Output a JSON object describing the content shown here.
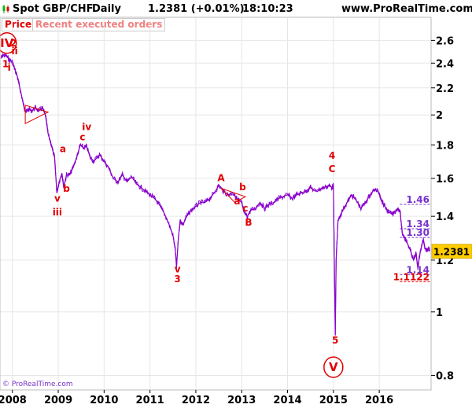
{
  "header": {
    "instrument": "Spot GBP/CHF",
    "period": "Daily",
    "last_price": "1.2381 (+0.01%)",
    "time": "18:10:23",
    "site": "www.ProRealTime.com"
  },
  "legend": {
    "price_label": "Price",
    "orders_label": "Recent executed orders"
  },
  "footer": {
    "copyright": "© ProRealTime.com"
  },
  "colors": {
    "price_line": "#8800cc",
    "wave_label": "#e00000",
    "level_label": "#7733cc",
    "price_badge": "#ffcc00",
    "grid": "#e6e6e6"
  },
  "chart_data": {
    "type": "line",
    "scale": "log",
    "x_tick_labels": [
      "2008",
      "2009",
      "2010",
      "2011",
      "2012",
      "2013",
      "2014",
      "2015",
      "2016"
    ],
    "y_tick_labels": [
      "0.8",
      "1",
      "1.2",
      "1.4",
      "1.6",
      "1.8",
      "2",
      "2.2",
      "2.4",
      "2.6"
    ],
    "y_ticks": [
      0.8,
      1.0,
      1.2,
      1.4,
      1.6,
      1.8,
      2.0,
      2.2,
      2.4,
      2.6
    ],
    "xlim": [
      2007.73,
      2017.13
    ],
    "ylim": [
      0.76,
      2.82
    ],
    "current_price": 1.2381,
    "current_price_label": "1.2381",
    "series": [
      {
        "points": [
          [
            2007.75,
            2.44
          ],
          [
            2007.8,
            2.47
          ],
          [
            2007.87,
            2.46
          ],
          [
            2007.93,
            2.43
          ],
          [
            2008.0,
            2.41
          ],
          [
            2008.05,
            2.35
          ],
          [
            2008.1,
            2.3
          ],
          [
            2008.15,
            2.22
          ],
          [
            2008.2,
            2.14
          ],
          [
            2008.25,
            2.06
          ],
          [
            2008.3,
            2.02
          ],
          [
            2008.35,
            2.04
          ],
          [
            2008.42,
            2.03
          ],
          [
            2008.5,
            2.05
          ],
          [
            2008.58,
            2.03
          ],
          [
            2008.65,
            2.05
          ],
          [
            2008.72,
            2.0
          ],
          [
            2008.78,
            1.87
          ],
          [
            2008.85,
            1.8
          ],
          [
            2008.92,
            1.72
          ],
          [
            2008.97,
            1.52
          ],
          [
            2009.02,
            1.58
          ],
          [
            2009.08,
            1.63
          ],
          [
            2009.12,
            1.55
          ],
          [
            2009.18,
            1.62
          ],
          [
            2009.25,
            1.62
          ],
          [
            2009.32,
            1.66
          ],
          [
            2009.4,
            1.72
          ],
          [
            2009.48,
            1.8
          ],
          [
            2009.55,
            1.78
          ],
          [
            2009.62,
            1.79
          ],
          [
            2009.7,
            1.72
          ],
          [
            2009.78,
            1.7
          ],
          [
            2009.9,
            1.74
          ],
          [
            2010.0,
            1.7
          ],
          [
            2010.1,
            1.66
          ],
          [
            2010.2,
            1.6
          ],
          [
            2010.3,
            1.58
          ],
          [
            2010.4,
            1.62
          ],
          [
            2010.5,
            1.58
          ],
          [
            2010.6,
            1.61
          ],
          [
            2010.7,
            1.57
          ],
          [
            2010.8,
            1.55
          ],
          [
            2010.9,
            1.53
          ],
          [
            2011.0,
            1.51
          ],
          [
            2011.1,
            1.49
          ],
          [
            2011.2,
            1.46
          ],
          [
            2011.3,
            1.42
          ],
          [
            2011.4,
            1.37
          ],
          [
            2011.5,
            1.31
          ],
          [
            2011.55,
            1.25
          ],
          [
            2011.58,
            1.17
          ],
          [
            2011.62,
            1.3
          ],
          [
            2011.66,
            1.38
          ],
          [
            2011.72,
            1.36
          ],
          [
            2011.8,
            1.4
          ],
          [
            2011.9,
            1.43
          ],
          [
            2012.0,
            1.45
          ],
          [
            2012.1,
            1.47
          ],
          [
            2012.2,
            1.47
          ],
          [
            2012.3,
            1.49
          ],
          [
            2012.4,
            1.52
          ],
          [
            2012.5,
            1.56
          ],
          [
            2012.6,
            1.53
          ],
          [
            2012.7,
            1.51
          ],
          [
            2012.8,
            1.52
          ],
          [
            2012.9,
            1.49
          ],
          [
            2013.0,
            1.47
          ],
          [
            2013.05,
            1.42
          ],
          [
            2013.12,
            1.4
          ],
          [
            2013.2,
            1.43
          ],
          [
            2013.3,
            1.44
          ],
          [
            2013.4,
            1.47
          ],
          [
            2013.5,
            1.44
          ],
          [
            2013.6,
            1.46
          ],
          [
            2013.7,
            1.47
          ],
          [
            2013.8,
            1.49
          ],
          [
            2013.9,
            1.5
          ],
          [
            2014.0,
            1.51
          ],
          [
            2014.1,
            1.49
          ],
          [
            2014.2,
            1.51
          ],
          [
            2014.3,
            1.52
          ],
          [
            2014.4,
            1.53
          ],
          [
            2014.5,
            1.55
          ],
          [
            2014.6,
            1.53
          ],
          [
            2014.7,
            1.54
          ],
          [
            2014.8,
            1.55
          ],
          [
            2014.9,
            1.56
          ],
          [
            2014.97,
            1.55
          ],
          [
            2015.0,
            1.56
          ],
          [
            2015.02,
            1.2
          ],
          [
            2015.04,
            0.92
          ],
          [
            2015.06,
            1.2
          ],
          [
            2015.1,
            1.38
          ],
          [
            2015.2,
            1.43
          ],
          [
            2015.3,
            1.47
          ],
          [
            2015.4,
            1.51
          ],
          [
            2015.5,
            1.48
          ],
          [
            2015.6,
            1.44
          ],
          [
            2015.7,
            1.47
          ],
          [
            2015.8,
            1.51
          ],
          [
            2015.9,
            1.54
          ],
          [
            2016.0,
            1.52
          ],
          [
            2016.05,
            1.48
          ],
          [
            2016.12,
            1.45
          ],
          [
            2016.2,
            1.42
          ],
          [
            2016.3,
            1.41
          ],
          [
            2016.4,
            1.44
          ],
          [
            2016.45,
            1.43
          ],
          [
            2016.5,
            1.32
          ],
          [
            2016.55,
            1.3
          ],
          [
            2016.6,
            1.28
          ],
          [
            2016.68,
            1.24
          ],
          [
            2016.75,
            1.2
          ],
          [
            2016.8,
            1.23
          ],
          [
            2016.84,
            1.17
          ],
          [
            2016.88,
            1.22
          ],
          [
            2016.92,
            1.26
          ],
          [
            2016.96,
            1.29
          ],
          [
            2017.0,
            1.25
          ],
          [
            2017.04,
            1.24
          ],
          [
            2017.08,
            1.25
          ],
          [
            2017.1,
            1.2381
          ]
        ]
      }
    ],
    "wave_labels": [
      {
        "text": "IV",
        "x": 2007.88,
        "y": 2.54,
        "circled": true
      },
      {
        "text": "2",
        "x": 2008.03,
        "y": 2.545
      },
      {
        "text": "ii",
        "x": 2008.05,
        "y": 2.475
      },
      {
        "text": "1",
        "x": 2007.85,
        "y": 2.365
      },
      {
        "text": "i",
        "x": 2007.93,
        "y": 2.335
      },
      {
        "text": "a",
        "x": 2009.1,
        "y": 1.755
      },
      {
        "text": "iv",
        "x": 2009.62,
        "y": 1.895
      },
      {
        "text": "c",
        "x": 2009.53,
        "y": 1.83
      },
      {
        "text": "b",
        "x": 2009.18,
        "y": 1.525
      },
      {
        "text": "v",
        "x": 2008.98,
        "y": 1.475
      },
      {
        "text": "iii",
        "x": 2008.98,
        "y": 1.405
      },
      {
        "text": "A",
        "x": 2012.55,
        "y": 1.585
      },
      {
        "text": "b",
        "x": 2013.02,
        "y": 1.535
      },
      {
        "text": "a",
        "x": 2012.9,
        "y": 1.46
      },
      {
        "text": "c",
        "x": 2013.08,
        "y": 1.425
      },
      {
        "text": "B",
        "x": 2013.15,
        "y": 1.355
      },
      {
        "text": "4",
        "x": 2014.97,
        "y": 1.715
      },
      {
        "text": "C",
        "x": 2014.97,
        "y": 1.635
      },
      {
        "text": "v",
        "x": 2011.6,
        "y": 1.15
      },
      {
        "text": "3",
        "x": 2011.6,
        "y": 1.11
      },
      {
        "text": "5",
        "x": 2015.04,
        "y": 0.895
      },
      {
        "text": "V",
        "x": 2015.0,
        "y": 0.812,
        "circled": true
      }
    ],
    "triangles": [
      {
        "points": [
          [
            2008.28,
            2.07
          ],
          [
            2008.78,
            2.02
          ],
          [
            2008.28,
            1.94
          ]
        ]
      },
      {
        "points": [
          [
            2012.55,
            1.545
          ],
          [
            2013.08,
            1.5
          ],
          [
            2012.85,
            1.47
          ]
        ]
      }
    ],
    "levels": [
      {
        "value": 1.46,
        "label": "1.46",
        "color": "level"
      },
      {
        "value": 1.34,
        "label": "1.34",
        "color": "level"
      },
      {
        "value": 1.3,
        "label": "1.30",
        "color": "level"
      },
      {
        "value": 1.14,
        "label": "1.14",
        "color": "level"
      },
      {
        "value": 1.1122,
        "label": "1.1122",
        "color": "wave"
      }
    ]
  }
}
